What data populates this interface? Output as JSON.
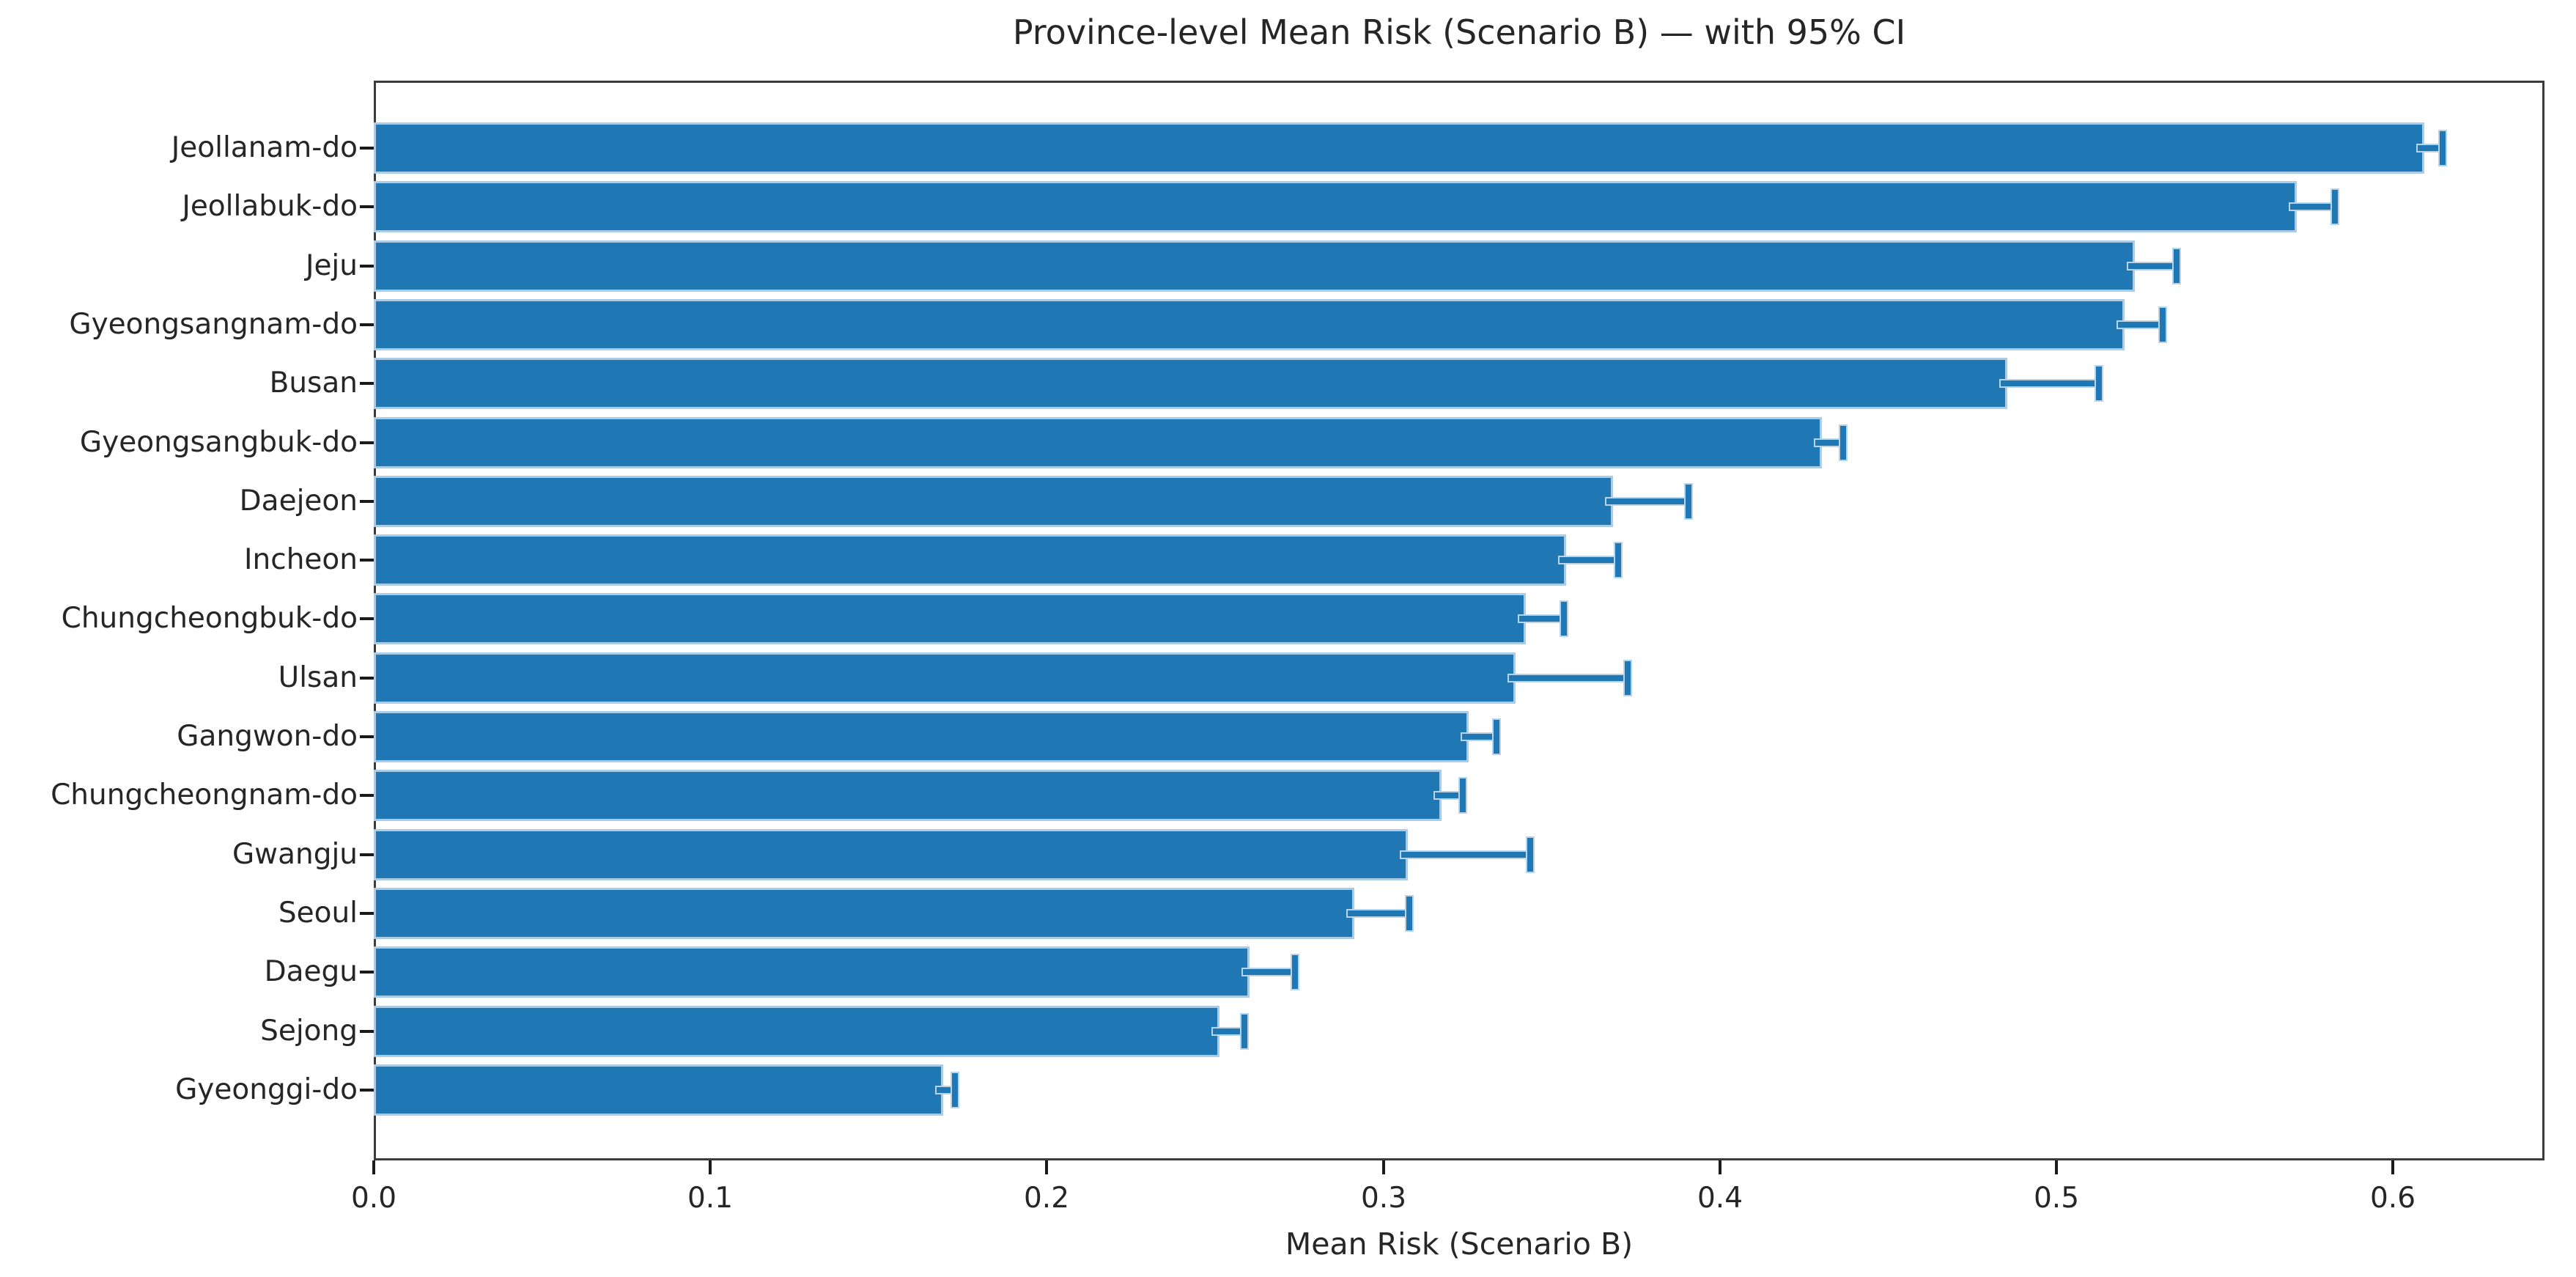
{
  "figure": {
    "background": "#ffffff"
  },
  "chart_data": {
    "type": "bar",
    "orientation": "horizontal",
    "title": "Province-level Mean Risk (Scenario B) — with 95% CI",
    "xlabel": "Mean Risk (Scenario B)",
    "ylabel": "",
    "legend_position": "none",
    "grid": false,
    "xlim": [
      0,
      0.645
    ],
    "xtick_labels": [
      "0.0",
      "0.1",
      "0.2",
      "0.3",
      "0.4",
      "0.5",
      "0.6"
    ],
    "xtick_values": [
      0.0,
      0.1,
      0.2,
      0.3,
      0.4,
      0.5,
      0.6
    ],
    "error_note": "95% CI upper whiskers with caps",
    "bar_color": "#1f77b4",
    "error_color": "#1f77b4",
    "frame_color": "#3c3c3c",
    "text_color": "#262626",
    "categories": [
      "Jeollanam-do",
      "Jeollabuk-do",
      "Jeju",
      "Gyeongsangnam-do",
      "Busan",
      "Gyeongsangbuk-do",
      "Daejeon",
      "Incheon",
      "Chungcheongbuk-do",
      "Ulsan",
      "Gangwon-do",
      "Chungcheongnam-do",
      "Gwangju",
      "Seoul",
      "Daegu",
      "Sejong",
      "Gyeonggi-do"
    ],
    "values": [
      0.608,
      0.57,
      0.522,
      0.519,
      0.484,
      0.429,
      0.367,
      0.353,
      0.341,
      0.338,
      0.324,
      0.316,
      0.306,
      0.29,
      0.259,
      0.25,
      0.168
    ],
    "ci95_upper_err": [
      0.006,
      0.012,
      0.013,
      0.012,
      0.028,
      0.007,
      0.023,
      0.016,
      0.012,
      0.034,
      0.009,
      0.007,
      0.037,
      0.017,
      0.014,
      0.008,
      0.004
    ]
  }
}
